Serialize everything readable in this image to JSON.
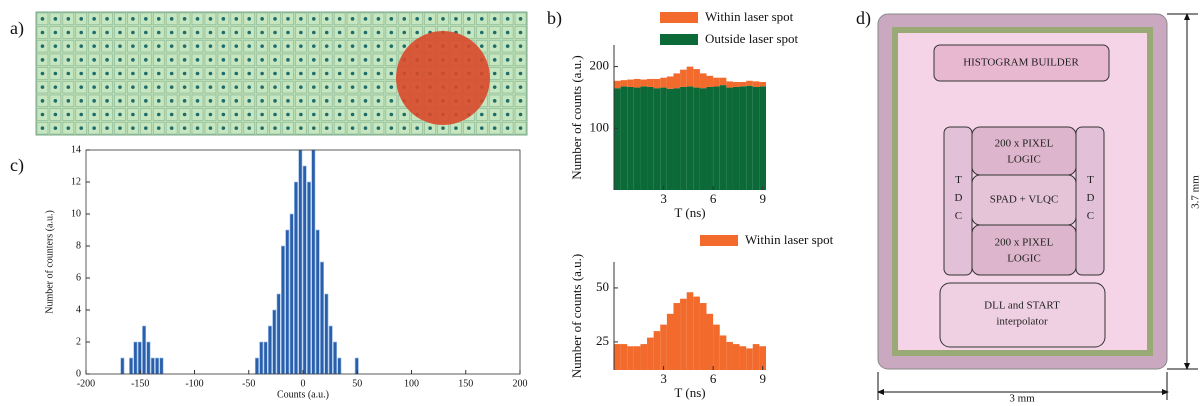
{
  "panel_labels": [
    "a)",
    "b)",
    "c)",
    "d)"
  ],
  "chip": {
    "histogram": "HISTOGRAM BUILDER",
    "logic_top": [
      "200 x PIXEL",
      "LOGIC"
    ],
    "spad": "SPAD + VLQC",
    "logic_bottom": [
      "200 x PIXEL",
      "LOGIC"
    ],
    "tdc_left": "TDC",
    "tdc_right": "TDC",
    "dll": [
      "DLL and START",
      "interpolator"
    ],
    "width_label": "3 mm",
    "height_label": "3.7 mm"
  },
  "chart_data": [
    {
      "type": "histogram",
      "stacked": true,
      "xlabel": "T (ns)",
      "ylabel": "Number of counts (a.u.)",
      "bins": [
        0,
        0.4,
        0.8,
        1.2,
        1.6,
        2,
        2.4,
        2.8,
        3.2,
        3.6,
        4,
        4.4,
        4.8,
        5.2,
        5.6,
        6,
        6.4,
        6.8,
        7.2,
        7.6,
        8,
        8.4,
        8.8,
        9.2
      ],
      "series": [
        {
          "name": "Outside laser spot",
          "color": "#0b6a38",
          "values": [
            165,
            168,
            167,
            166,
            168,
            167,
            165,
            166,
            164,
            165,
            167,
            168,
            166,
            165,
            167,
            168,
            170,
            166,
            167,
            168,
            169,
            167,
            168
          ]
        },
        {
          "name": "Within laser spot",
          "color": "#f26a2c",
          "values": [
            12,
            10,
            12,
            14,
            11,
            13,
            15,
            16,
            20,
            24,
            28,
            32,
            30,
            24,
            18,
            14,
            12,
            10,
            8,
            7,
            8,
            9,
            7
          ]
        }
      ],
      "xlim": [
        0,
        9.2
      ],
      "xticks": [
        3,
        6,
        9
      ],
      "ylim": [
        0,
        235
      ],
      "yticks": [
        100,
        200
      ]
    },
    {
      "type": "histogram",
      "stacked": false,
      "xlabel": "T (ns)",
      "ylabel": "Number of counts (a.u.)",
      "bins": [
        0,
        0.4,
        0.8,
        1.2,
        1.6,
        2,
        2.4,
        2.8,
        3.2,
        3.6,
        4,
        4.4,
        4.8,
        5.2,
        5.6,
        6,
        6.4,
        6.8,
        7.2,
        7.6,
        8,
        8.4,
        8.8,
        9.2
      ],
      "series": [
        {
          "name": "Within laser spot",
          "color": "#f26a2c",
          "values": [
            24,
            24,
            23,
            23,
            24,
            27,
            30,
            33,
            38,
            43,
            45,
            48,
            46,
            43,
            38,
            33,
            28,
            25,
            24,
            23,
            22,
            24,
            23
          ]
        }
      ],
      "xlim": [
        0,
        9.2
      ],
      "xticks": [
        3,
        6,
        9
      ],
      "ylim": [
        12,
        62
      ],
      "yticks": [
        25,
        50
      ]
    },
    {
      "type": "histogram",
      "stacked": false,
      "xlabel": "Counts (a.u.)",
      "ylabel": "Number of counters (a.u.)",
      "bins": [
        -168,
        -164,
        -160,
        -156,
        -152,
        -148,
        -144,
        -140,
        -136,
        -132,
        -128,
        -124,
        -120,
        -116,
        -112,
        -108,
        -104,
        -100,
        -96,
        -92,
        -88,
        -84,
        -80,
        -76,
        -72,
        -68,
        -64,
        -60,
        -56,
        -52,
        -48,
        -44,
        -40,
        -36,
        -32,
        -28,
        -24,
        -20,
        -16,
        -12,
        -8,
        -4,
        0,
        4,
        8,
        12,
        16,
        20,
        24,
        28,
        32,
        36,
        40,
        44,
        48,
        52
      ],
      "series": [
        {
          "color": "#2b5fab",
          "values": [
            1,
            0,
            1,
            2,
            2,
            3,
            2,
            1,
            1,
            1,
            0,
            0,
            0,
            0,
            0,
            0,
            0,
            0,
            0,
            0,
            0,
            0,
            0,
            0,
            0,
            0,
            0,
            0,
            0,
            0,
            0,
            1,
            2,
            2,
            3,
            4,
            5,
            8,
            9,
            10,
            12,
            14,
            13,
            12,
            14,
            9,
            7,
            5,
            3,
            2,
            1,
            0,
            0,
            0,
            1
          ]
        }
      ],
      "xlim": [
        -200,
        200
      ],
      "xticks": [
        -200,
        -150,
        -100,
        -50,
        0,
        50,
        100,
        150,
        200
      ],
      "ylim": [
        0,
        14
      ],
      "yticks": [
        0,
        2,
        4,
        6,
        8,
        10,
        12,
        14
      ],
      "frame": true
    }
  ]
}
